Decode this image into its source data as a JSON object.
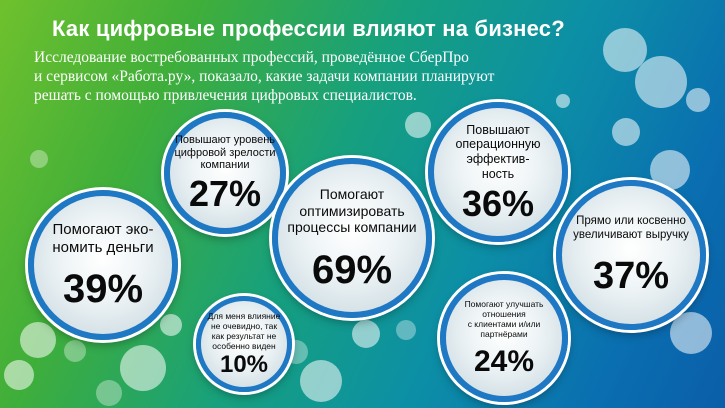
{
  "title": "Как цифровые профессии влияют на бизнес?",
  "subtitle": [
    "Исследование востребованных профессий, проведённое СберПро",
    "и сервисом «Работа.ру», показало, какие задачи компании планируют",
    "решать с помощью привлечения цифровых специалистов."
  ],
  "bubbles": [
    {
      "label": [
        "Помогают эко-",
        "номить деньги"
      ],
      "percent": "39%"
    },
    {
      "label": [
        "Повышают уровень",
        "цифровой зрелости",
        "компании"
      ],
      "percent": "27%"
    },
    {
      "label": [
        "Помогают",
        "оптимизировать",
        "процессы компании"
      ],
      "percent": "69%"
    },
    {
      "label": [
        "Для меня влияние",
        "не очевидно, так",
        "как результат не",
        "особенно виден"
      ],
      "percent": "10%"
    },
    {
      "label": [
        "Повышают",
        "операционную",
        "эффектив-",
        "ность"
      ],
      "percent": "36%"
    },
    {
      "label": [
        "Помогают улучшать",
        "отношения",
        "с клиентами и/или",
        "партнёрами"
      ],
      "percent": "24%"
    },
    {
      "label": [
        "Прямо или косвенно",
        "увеличивают выручку"
      ],
      "percent": "37%"
    }
  ],
  "colors": {
    "bubble_ring": "#1f78c4",
    "bg_green": "#6fc12d",
    "bg_blue": "#0b5ea9"
  }
}
